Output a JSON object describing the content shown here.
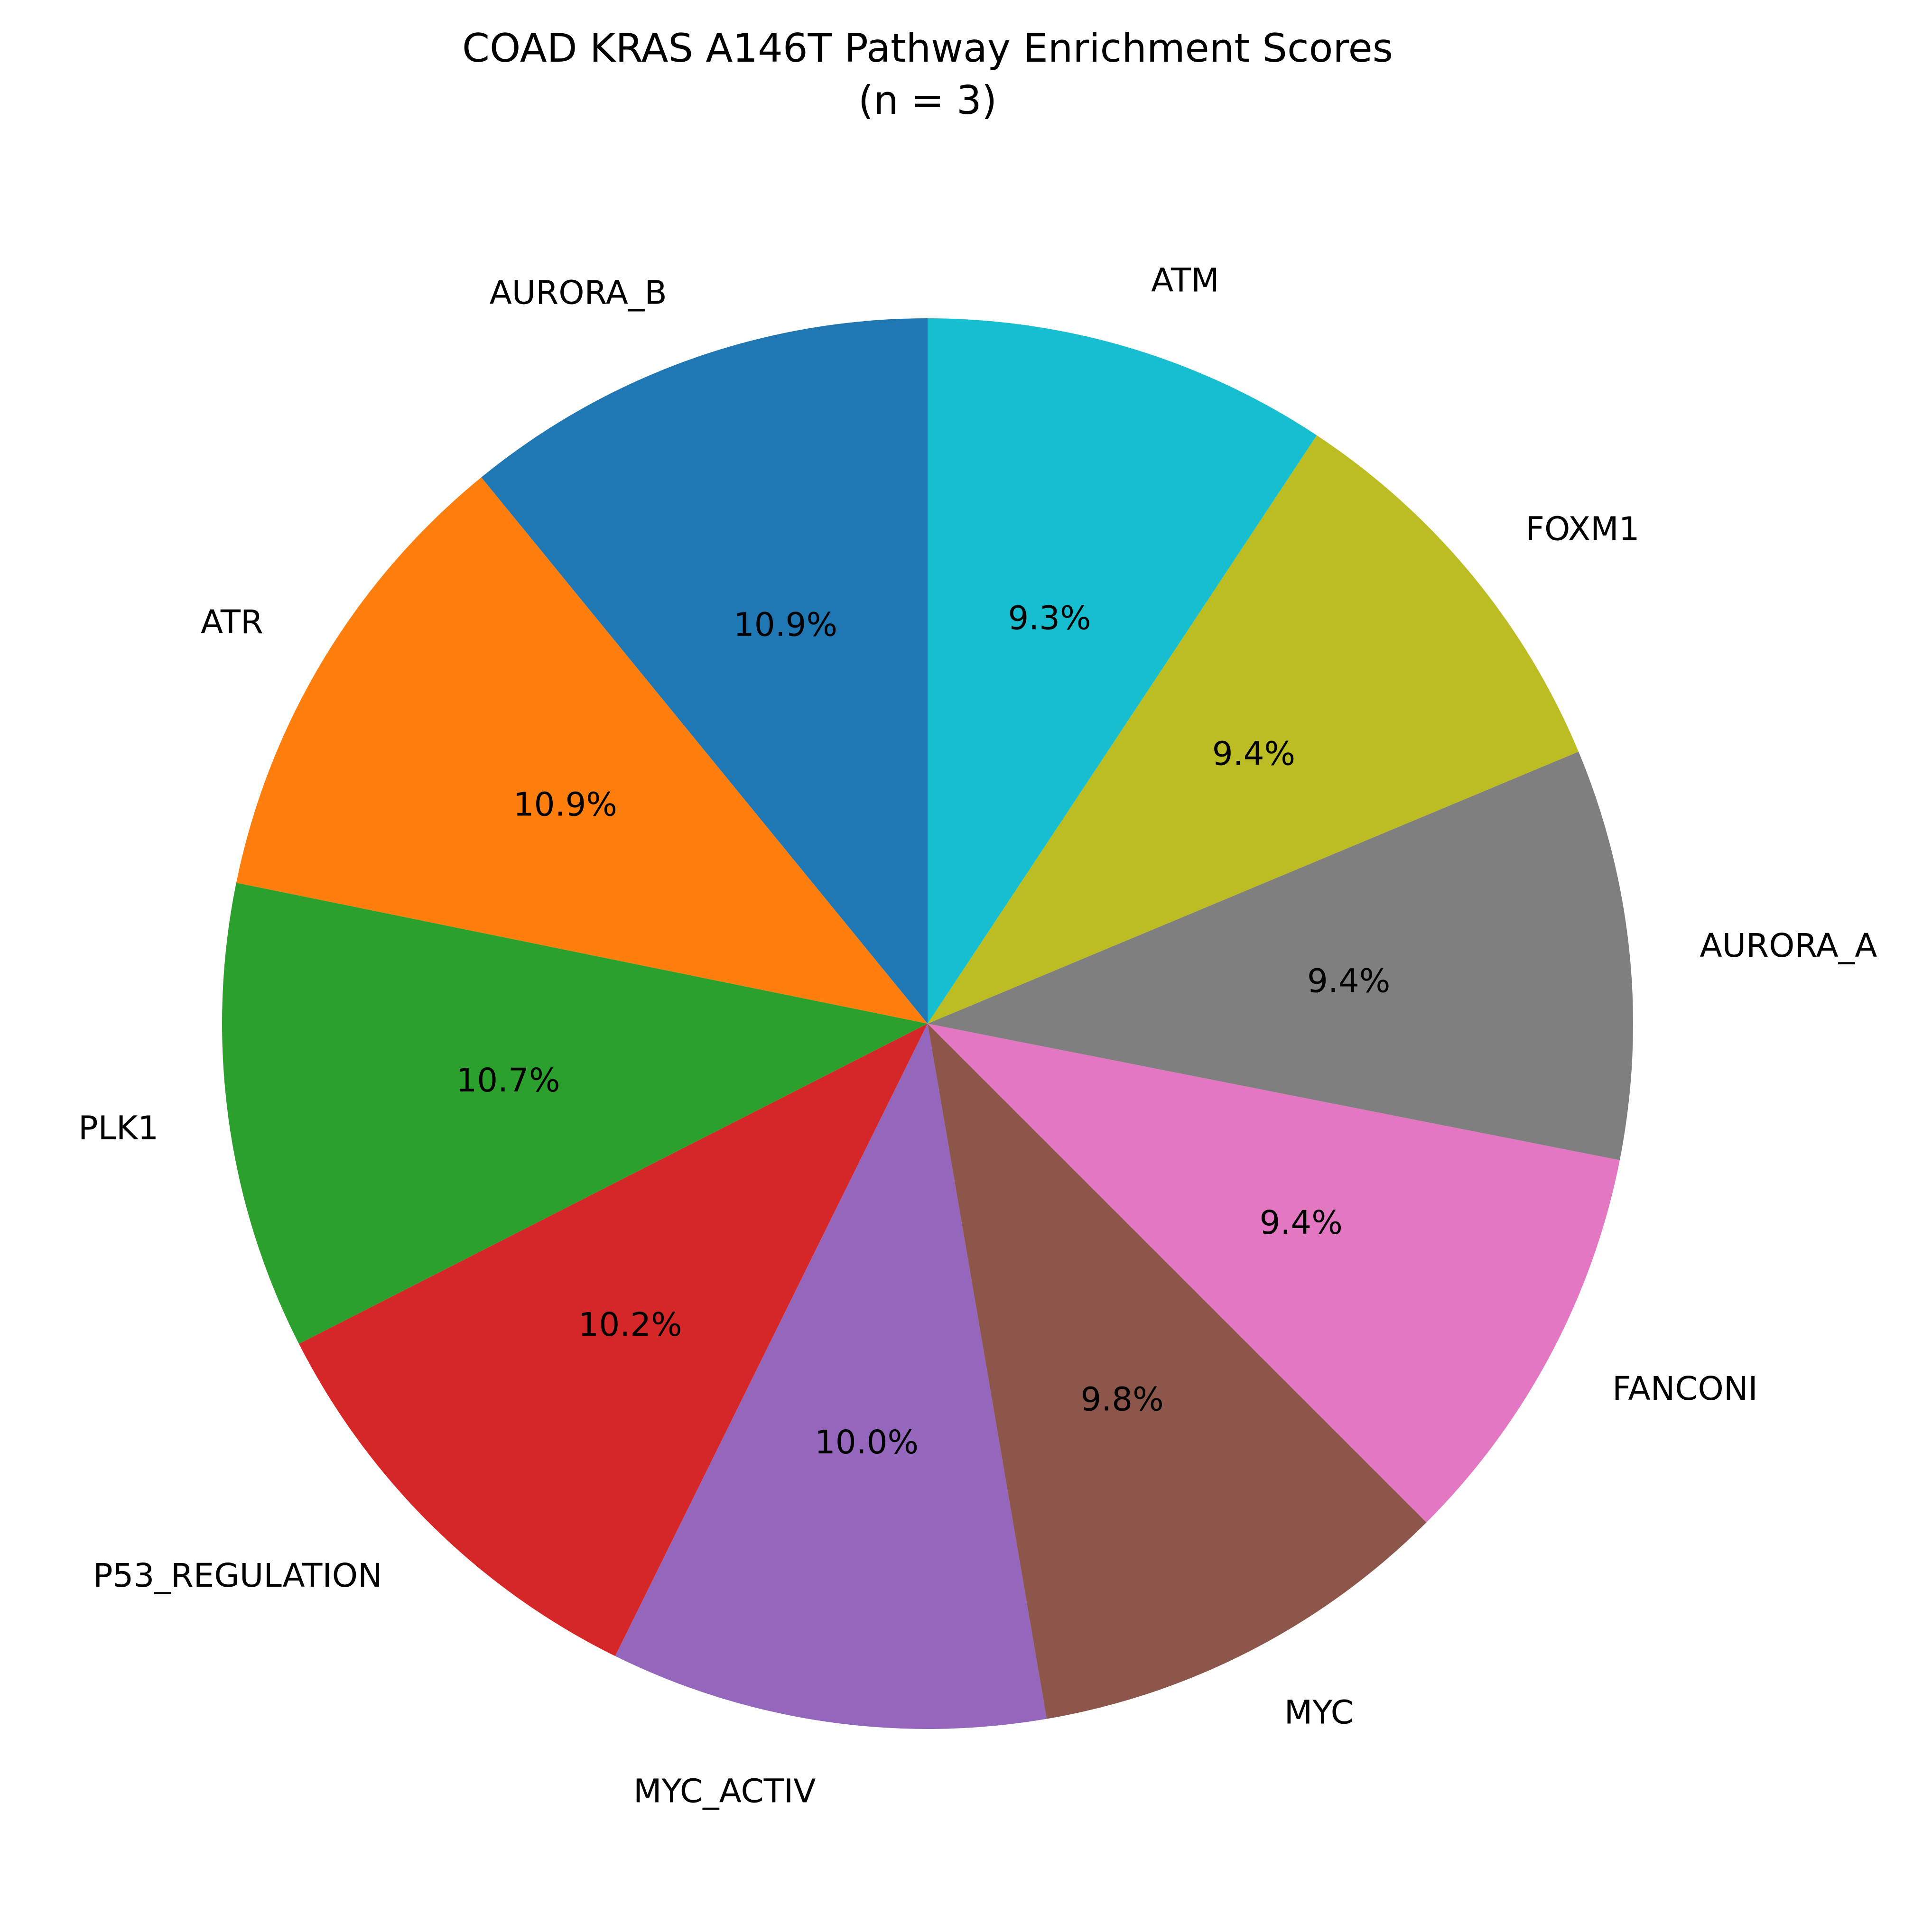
{
  "chart_data": {
    "type": "pie",
    "title": "COAD KRAS A146T Pathway Enrichment Scores",
    "subtitle": "(n = 3)",
    "start_angle_deg": 90,
    "direction": "counterclockwise",
    "slices": [
      {
        "label": "AURORA_B",
        "pct_label": "10.9%",
        "value": 10.9,
        "color": "#1f77b4"
      },
      {
        "label": "ATR",
        "pct_label": "10.9%",
        "value": 10.9,
        "color": "#ff7f0e"
      },
      {
        "label": "PLK1",
        "pct_label": "10.7%",
        "value": 10.7,
        "color": "#2ca02c"
      },
      {
        "label": "P53_REGULATION",
        "pct_label": "10.2%",
        "value": 10.2,
        "color": "#d62728"
      },
      {
        "label": "MYC_ACTIV",
        "pct_label": "10.0%",
        "value": 10.0,
        "color": "#9467bd"
      },
      {
        "label": "MYC",
        "pct_label": "9.8%",
        "value": 9.8,
        "color": "#8c564b"
      },
      {
        "label": "FANCONI",
        "pct_label": "9.4%",
        "value": 9.4,
        "color": "#e377c2"
      },
      {
        "label": "AURORA_A",
        "pct_label": "9.4%",
        "value": 9.4,
        "color": "#7f7f7f"
      },
      {
        "label": "FOXM1",
        "pct_label": "9.4%",
        "value": 9.4,
        "color": "#bcbd22"
      },
      {
        "label": "ATM",
        "pct_label": "9.3%",
        "value": 9.3,
        "color": "#17becf"
      }
    ]
  }
}
